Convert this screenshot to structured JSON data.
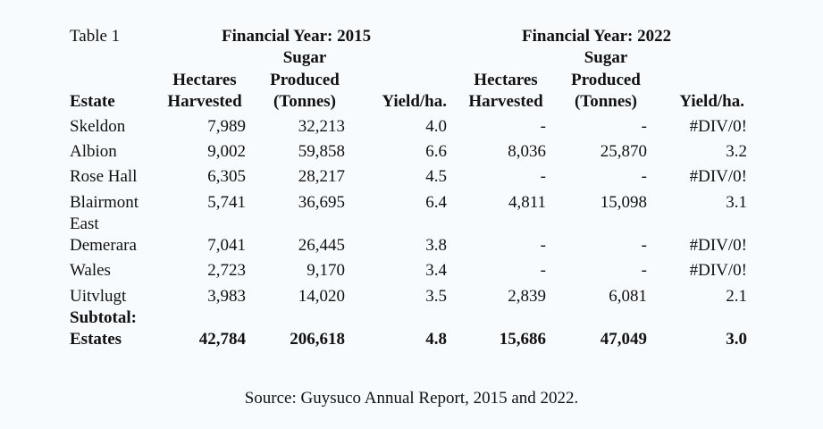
{
  "table_label": "Table 1",
  "year_headers": [
    "Financial Year: 2015",
    "Financial Year: 2022"
  ],
  "col_headers": {
    "estate": "Estate",
    "hectares_top": "Hectares",
    "hectares_bottom": "Harvested",
    "sugar_top": "Sugar",
    "sugar_mid": "Produced",
    "sugar_bottom": "(Tonnes)",
    "yield": "Yield/ha."
  },
  "rows": [
    {
      "estate": "Skeldon",
      "h2015": "7,989",
      "s2015": "32,213",
      "y2015": "4.0",
      "h2022": "-",
      "s2022": "-",
      "y2022": "#DIV/0!"
    },
    {
      "estate": "Albion",
      "h2015": "9,002",
      "s2015": "59,858",
      "y2015": "6.6",
      "h2022": "8,036",
      "s2022": "25,870",
      "y2022": "3.2"
    },
    {
      "estate": "Rose Hall",
      "h2015": "6,305",
      "s2015": "28,217",
      "y2015": "4.5",
      "h2022": "-",
      "s2022": "-",
      "y2022": "#DIV/0!"
    },
    {
      "estate": "Blairmont",
      "estate_line2": "East",
      "h2015": "5,741",
      "s2015": "36,695",
      "y2015": "6.4",
      "h2022": "4,811",
      "s2022": "15,098",
      "y2022": "3.1"
    },
    {
      "estate": "Demerara",
      "h2015": "7,041",
      "s2015": "26,445",
      "y2015": "3.8",
      "h2022": "-",
      "s2022": "-",
      "y2022": "#DIV/0!"
    },
    {
      "estate": "Wales",
      "h2015": "2,723",
      "s2015": "9,170",
      "y2015": "3.4",
      "h2022": "-",
      "s2022": "-",
      "y2022": "#DIV/0!"
    },
    {
      "estate": "Uitvlugt",
      "h2015": "3,983",
      "s2015": "14,020",
      "y2015": "3.5",
      "h2022": "2,839",
      "s2022": "6,081",
      "y2022": "2.1"
    }
  ],
  "subtotal": {
    "label_line1": "Subtotal:",
    "label_line2": "Estates",
    "h2015": "42,784",
    "s2015": "206,618",
    "y2015": "4.8",
    "h2022": "15,686",
    "s2022": "47,049",
    "y2022": "3.0"
  },
  "source": "Source: Guysuco Annual Report, 2015 and 2022."
}
